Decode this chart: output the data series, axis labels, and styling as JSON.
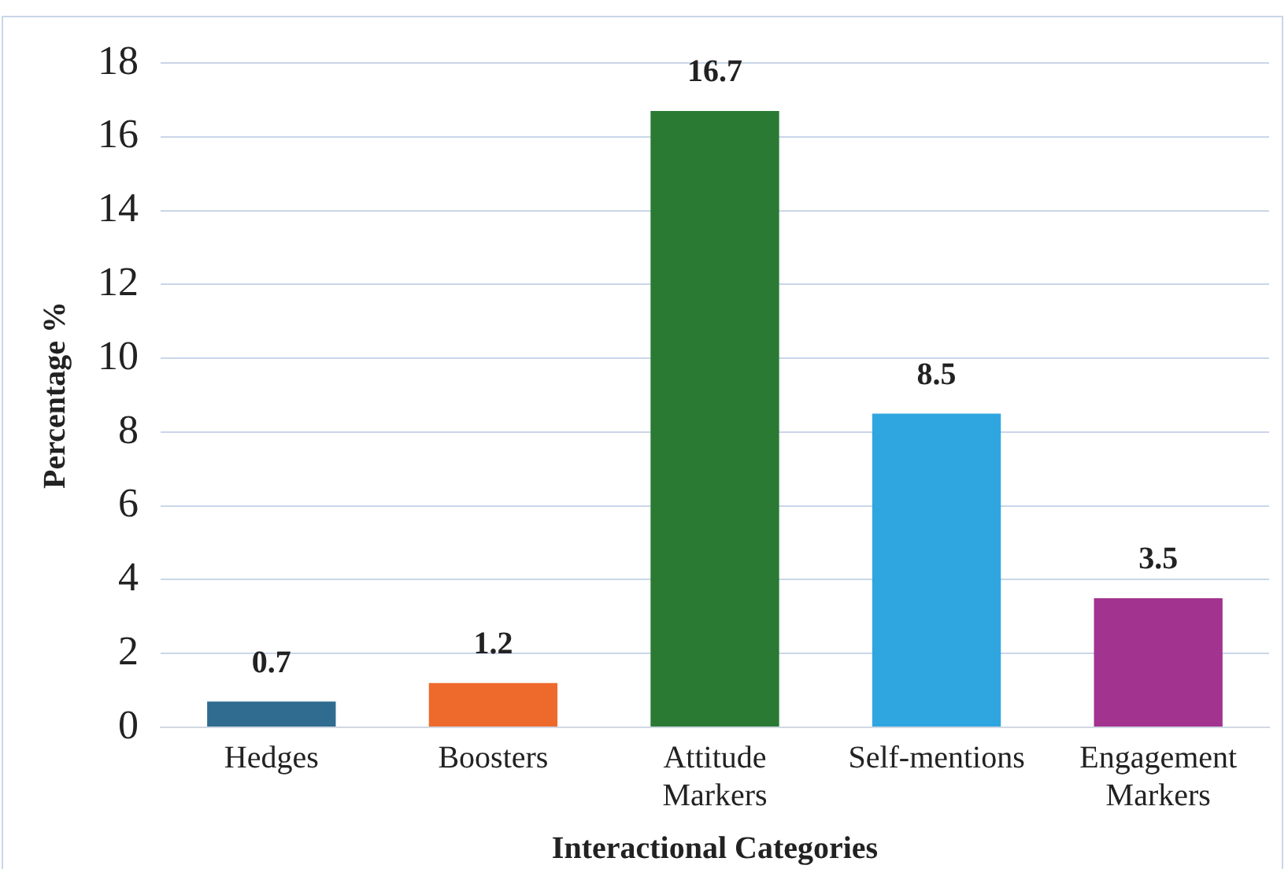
{
  "chart_data": {
    "type": "bar",
    "xlabel": "Interactional Categories",
    "ylabel": "Percentage %",
    "categories": [
      "Hedges",
      "Boosters",
      "Attitude Markers",
      "Self-mentions",
      "Engagement Markers"
    ],
    "values": [
      0.7,
      1.2,
      16.7,
      8.5,
      3.5
    ],
    "colors": [
      "#2f6c8f",
      "#ee6a2c",
      "#2b7a34",
      "#2fa6df",
      "#a2338f"
    ],
    "ylim": [
      0,
      18
    ],
    "yticks": [
      0,
      2,
      4,
      6,
      8,
      10,
      12,
      14,
      16,
      18
    ],
    "grid": "y",
    "data_labels": true,
    "legend": false
  }
}
